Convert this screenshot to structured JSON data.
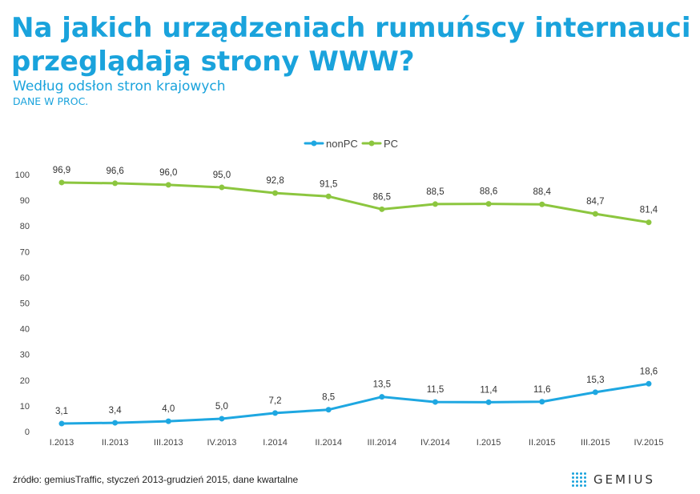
{
  "header": {
    "title": "Na jakich urządzeniach rumuńscy internauci przeglądają strony WWW?",
    "subtitle": "Według odsłon stron krajowych",
    "units": "DANE W PROC."
  },
  "chart_data": {
    "type": "line",
    "title": "Na jakich urządzeniach rumuńscy internauci przeglądają strony WWW?",
    "subtitle": "Według odsłon stron krajowych",
    "xlabel": "",
    "ylabel": "",
    "ylim": [
      0,
      100
    ],
    "yticks": [
      0,
      10,
      20,
      30,
      40,
      50,
      60,
      70,
      80,
      90,
      100
    ],
    "categories": [
      "I.2013",
      "II.2013",
      "III.2013",
      "IV.2013",
      "I.2014",
      "II.2014",
      "III.2014",
      "IV.2014",
      "I.2015",
      "II.2015",
      "III.2015",
      "IV.2015"
    ],
    "series": [
      {
        "name": "nonPC",
        "color": "#1ea7e1",
        "values": [
          3.1,
          3.4,
          4.0,
          5.0,
          7.2,
          8.5,
          13.5,
          11.5,
          11.4,
          11.6,
          15.3,
          18.6
        ],
        "labels": [
          "3,1",
          "3,4",
          "4,0",
          "5,0",
          "7,2",
          "8,5",
          "13,5",
          "11,5",
          "11,4",
          "11,6",
          "15,3",
          "18,6"
        ]
      },
      {
        "name": "PC",
        "color": "#8cc63f",
        "values": [
          96.9,
          96.6,
          96.0,
          95.0,
          92.8,
          91.5,
          86.5,
          88.5,
          88.6,
          88.4,
          84.7,
          81.4
        ],
        "labels": [
          "96,9",
          "96,6",
          "96,0",
          "95,0",
          "92,8",
          "91,5",
          "86,5",
          "88,5",
          "88,6",
          "88,4",
          "84,7",
          "81,4"
        ]
      }
    ],
    "legend": "top-center",
    "grid": false
  },
  "footer": {
    "source": "źródło: gemiusTraffic, styczeń 2013-grudzień 2015, dane kwartalne",
    "logo_text": "GEMIUS"
  }
}
